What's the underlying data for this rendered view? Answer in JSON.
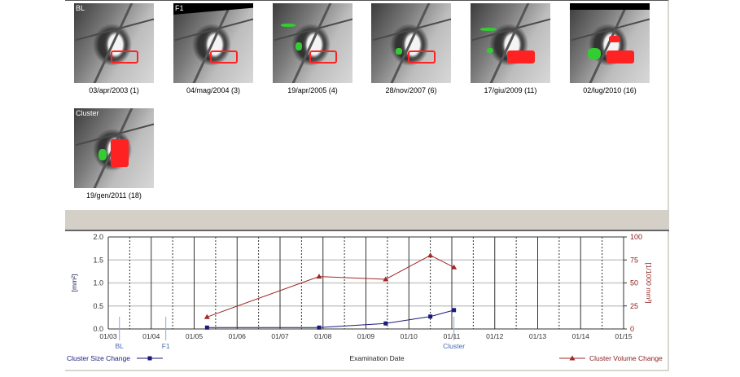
{
  "thumbnails": [
    {
      "tag": "BL",
      "caption": "03/apr/2003 (1)"
    },
    {
      "tag": "F1",
      "caption": "04/mag/2004 (3)"
    },
    {
      "tag": "",
      "caption": "19/apr/2005 (4)"
    },
    {
      "tag": "",
      "caption": "28/nov/2007 (6)"
    },
    {
      "tag": "",
      "caption": "17/giu/2009 (11)"
    },
    {
      "tag": "",
      "caption": "02/lug/2010 (16)"
    },
    {
      "tag": "Cluster",
      "caption": "19/gen/2011 (18)"
    }
  ],
  "chart_data": {
    "type": "line",
    "xlabel": "Examination Date",
    "ylabel_left": "[mm²]",
    "ylabel_right": "[1/1000 mm³]",
    "ylim_left": [
      0,
      2.0
    ],
    "ylim_right": [
      0,
      100
    ],
    "xlim": [
      2003,
      2015
    ],
    "yticks_left": [
      "0.0",
      "0.5",
      "1.0",
      "1.5",
      "2.0"
    ],
    "yticks_right": [
      "0",
      "25",
      "50",
      "75",
      "100"
    ],
    "xticks": [
      "01/03",
      "01/04",
      "01/05",
      "01/06",
      "01/07",
      "01/08",
      "01/09",
      "01/10",
      "01/11",
      "01/12",
      "01/13",
      "01/14",
      "01/15"
    ],
    "markers": [
      {
        "label": "BL",
        "x": 2003.26
      },
      {
        "label": "F1",
        "x": 2004.34
      },
      {
        "label": "Cluster",
        "x": 2011.05
      }
    ],
    "series": [
      {
        "name": "Cluster Size Change",
        "axis": "left",
        "color": "#1a1a7a",
        "marker": "square",
        "x": [
          2005.3,
          2007.91,
          2009.46,
          2010.5,
          2011.05
        ],
        "values": [
          0.03,
          0.03,
          0.12,
          0.27,
          0.41
        ]
      },
      {
        "name": "Cluster Volume Change",
        "axis": "right",
        "color": "#a02828",
        "marker": "triangle",
        "x": [
          2005.3,
          2007.91,
          2009.46,
          2010.5,
          2011.05
        ],
        "values": [
          13,
          57,
          54,
          80,
          67
        ]
      }
    ],
    "legend": [
      "bottom-left",
      "bottom-right"
    ],
    "grid": true
  }
}
